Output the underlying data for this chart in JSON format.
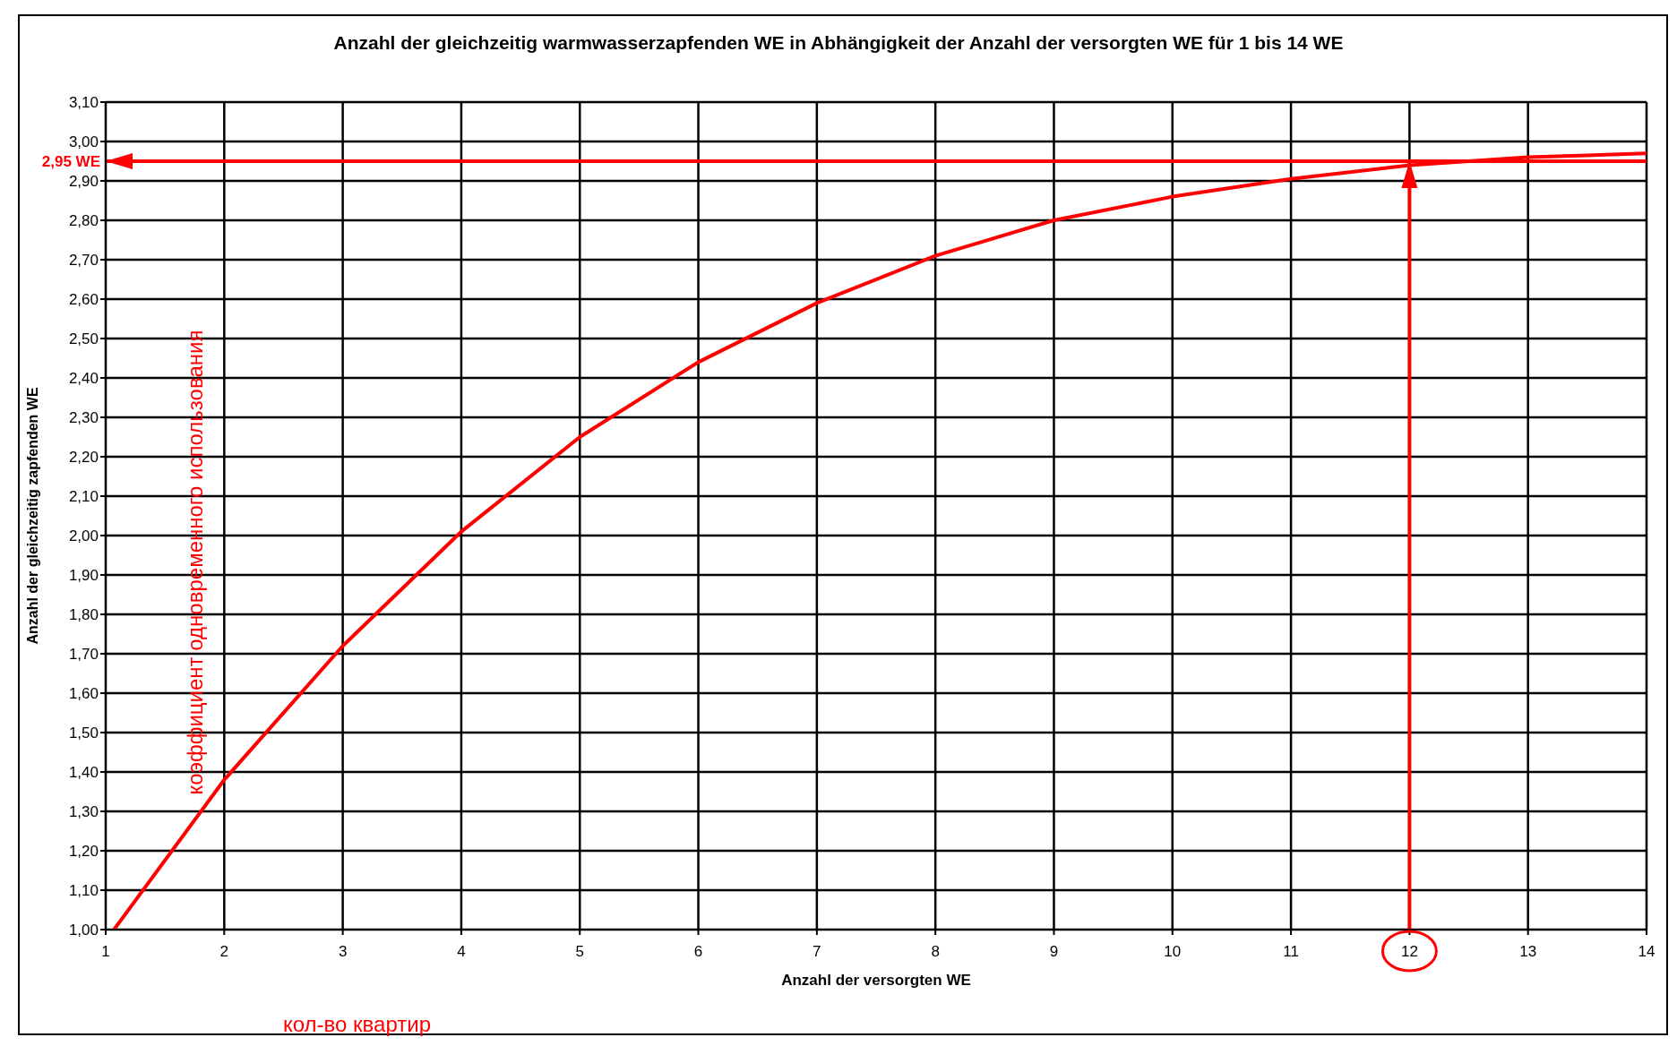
{
  "chart_data": {
    "type": "line",
    "title": "Anzahl der gleichzeitig warmwasserzapfenden WE in Abhängigkeit der Anzahl der versorgten WE für 1 bis 14 WE",
    "xlabel": "Anzahl der versorgten WE",
    "ylabel": "Anzahl der gleichzeitig zapfenden WE",
    "x": [
      1.07,
      2,
      3,
      4,
      5,
      6,
      7,
      8,
      9,
      10,
      11,
      12,
      13,
      14
    ],
    "series": [
      {
        "color": "#ff0000",
        "values": [
          1.0,
          1.38,
          1.72,
          2.01,
          2.25,
          2.44,
          2.59,
          2.71,
          2.8,
          2.86,
          2.905,
          2.94,
          2.96,
          2.97
        ]
      }
    ],
    "xlim": [
      1,
      14
    ],
    "xticks": [
      1,
      2,
      3,
      4,
      5,
      6,
      7,
      8,
      9,
      10,
      11,
      12,
      13,
      14
    ],
    "ylim": [
      1,
      3.1
    ],
    "yticks": [
      {
        "value": 1,
        "label": "1,00"
      },
      {
        "value": 1.1,
        "label": "1,10"
      },
      {
        "value": 1.2,
        "label": "1,20"
      },
      {
        "value": 1.3,
        "label": "1,30"
      },
      {
        "value": 1.4,
        "label": "1,40"
      },
      {
        "value": 1.5,
        "label": "1,50"
      },
      {
        "value": 1.6,
        "label": "1,60"
      },
      {
        "value": 1.7,
        "label": "1,70"
      },
      {
        "value": 1.8,
        "label": "1,80"
      },
      {
        "value": 1.9,
        "label": "1,90"
      },
      {
        "value": 2,
        "label": "2,00"
      },
      {
        "value": 2.1,
        "label": "2,10"
      },
      {
        "value": 2.2,
        "label": "2,20"
      },
      {
        "value": 2.3,
        "label": "2,30"
      },
      {
        "value": 2.4,
        "label": "2,40"
      },
      {
        "value": 2.5,
        "label": "2,50"
      },
      {
        "value": 2.6,
        "label": "2,60"
      },
      {
        "value": 2.7,
        "label": "2,70"
      },
      {
        "value": 2.8,
        "label": "2,80"
      },
      {
        "value": 2.9,
        "label": "2,90"
      },
      {
        "value": 3,
        "label": "3,00"
      },
      {
        "value": 3.1,
        "label": "3,10"
      }
    ],
    "grid": true,
    "ref_lines": [
      {
        "axis": "y",
        "value": 2.95,
        "label": "2,95 WE",
        "color": "#ff0000"
      },
      {
        "axis": "x",
        "value": 12,
        "label": null,
        "color": "#ff0000"
      }
    ],
    "annotations": [
      "коэффициент одновременного использования",
      "кол-во квартир"
    ]
  }
}
